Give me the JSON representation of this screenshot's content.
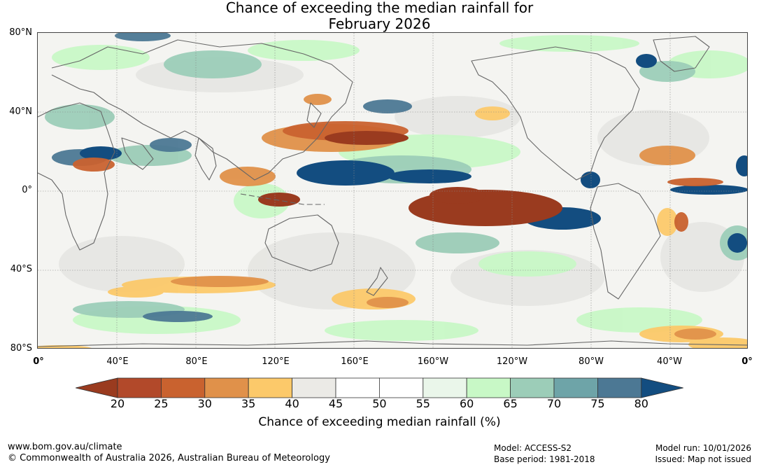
{
  "title": {
    "line1": "Chance of exceeding the median rainfall for",
    "line2": "February 2026"
  },
  "map": {
    "lat_labels": [
      "80°N",
      "40°N",
      "0°",
      "40°S",
      "80°S"
    ],
    "lon_labels": [
      "0°",
      "40°E",
      "80°E",
      "120°E",
      "160°E",
      "160°W",
      "120°W",
      "80°W",
      "40°W",
      "0°"
    ],
    "features": [
      {
        "name": "central-pacific-dry-anomaly",
        "value_pct": 20,
        "label": "20-25%"
      },
      {
        "name": "maritime-continent-dry-anomaly",
        "value_pct": 22,
        "label": "20-25%"
      },
      {
        "name": "north-pacific-dry-band",
        "value_pct": 27,
        "label": "25-30%"
      },
      {
        "name": "west-pacific-wet-anomaly",
        "value_pct": 78,
        "label": "75-80%"
      },
      {
        "name": "east-pacific-wet-anomaly",
        "value_pct": 80,
        "label": "80%"
      },
      {
        "name": "atlantic-equatorial-wet-anomaly",
        "value_pct": 80,
        "label": "80%"
      }
    ]
  },
  "colorbar": {
    "ticks": [
      "20",
      "25",
      "30",
      "35",
      "40",
      "45",
      "50",
      "55",
      "60",
      "65",
      "70",
      "75",
      "80"
    ],
    "colors": [
      "#9a3b1f",
      "#b2492a",
      "#c9622f",
      "#e0914a",
      "#fcc96a",
      "#ebeae6",
      "#ffffff",
      "#ffffff",
      "#eaf6ea",
      "#c8f8c6",
      "#9ccdb8",
      "#6ea4a8",
      "#4c7894",
      "#134d80"
    ],
    "title": "Chance of exceeding median rainfall (%)"
  },
  "footer": {
    "site": "www.bom.gov.au/climate",
    "copyright": "© Commonwealth of Australia 2026, Australian Bureau of Meteorology",
    "model": "Model: ACCESS-S2",
    "base_period": "Base period: 1981-2018",
    "model_run": "Model run: 10/01/2026",
    "issued": "Issued: Map not issued"
  }
}
